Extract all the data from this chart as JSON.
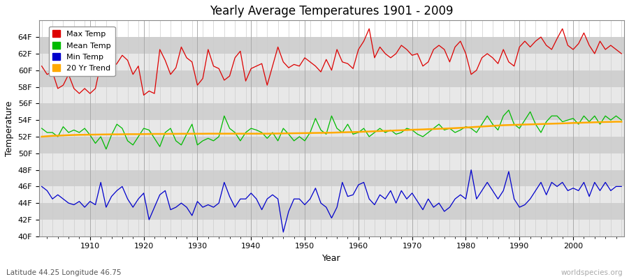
{
  "title": "Yearly Average Temperatures 1901 - 2009",
  "xlabel": "Year",
  "ylabel": "Temperature",
  "start_year": 1901,
  "end_year": 2009,
  "ylim": [
    40,
    66
  ],
  "yticks": [
    40,
    42,
    44,
    46,
    48,
    50,
    52,
    54,
    56,
    58,
    60,
    62,
    64
  ],
  "background_color": "#ffffff",
  "plot_bg_color": "#ffffff",
  "band_color_light": "#e8e8e8",
  "band_color_dark": "#d0d0d0",
  "grid_color": "#cccccc",
  "legend_labels": [
    "Max Temp",
    "Mean Temp",
    "Min Temp",
    "20 Yr Trend"
  ],
  "line_colors": [
    "#dd0000",
    "#00bb00",
    "#0000cc",
    "#ffaa00"
  ],
  "subtitle_left": "Latitude 44.25 Longitude 46.75",
  "subtitle_right": "worldspecies.org",
  "max_temps": [
    60.5,
    59.5,
    59.8,
    57.8,
    58.2,
    59.5,
    57.8,
    57.2,
    57.8,
    57.2,
    57.8,
    60.8,
    62.5,
    60.2,
    60.8,
    61.8,
    61.2,
    59.5,
    60.5,
    57.0,
    57.5,
    57.2,
    62.5,
    61.2,
    59.5,
    60.3,
    62.8,
    61.5,
    61.0,
    58.2,
    59.0,
    62.5,
    60.5,
    60.2,
    58.8,
    59.3,
    61.5,
    62.3,
    58.7,
    60.2,
    60.5,
    60.8,
    58.2,
    60.5,
    62.8,
    61.0,
    60.3,
    60.7,
    60.5,
    61.5,
    61.0,
    60.5,
    59.8,
    61.3,
    60.0,
    62.5,
    61.0,
    60.8,
    60.2,
    62.5,
    63.5,
    65.0,
    61.5,
    62.8,
    62.0,
    61.5,
    62.0,
    63.0,
    62.5,
    61.8,
    62.0,
    60.5,
    61.0,
    62.5,
    63.0,
    62.5,
    61.0,
    62.8,
    63.5,
    62.0,
    59.5,
    60.0,
    61.5,
    62.0,
    61.5,
    60.8,
    62.5,
    61.0,
    60.5,
    62.8,
    63.5,
    62.8,
    63.5,
    64.0,
    63.0,
    62.5,
    63.8,
    65.0,
    63.0,
    62.5,
    63.2,
    64.5,
    63.0,
    62.0,
    63.5,
    62.5,
    63.0,
    62.5,
    62.0
  ],
  "mean_temps": [
    53.0,
    52.5,
    52.5,
    52.0,
    53.2,
    52.5,
    52.8,
    52.5,
    53.0,
    52.2,
    51.2,
    52.0,
    50.5,
    52.2,
    53.5,
    53.0,
    51.5,
    51.0,
    52.0,
    53.0,
    52.8,
    51.8,
    50.8,
    52.5,
    53.0,
    51.5,
    51.0,
    52.3,
    53.5,
    51.0,
    51.5,
    51.8,
    51.5,
    52.0,
    54.5,
    53.0,
    52.5,
    51.5,
    52.5,
    53.0,
    52.8,
    52.5,
    51.8,
    52.5,
    51.5,
    53.0,
    52.3,
    51.5,
    52.0,
    51.5,
    52.5,
    54.2,
    52.8,
    52.3,
    54.5,
    53.0,
    52.5,
    53.5,
    52.3,
    52.5,
    53.0,
    52.0,
    52.5,
    53.0,
    52.5,
    52.8,
    52.3,
    52.5,
    53.0,
    52.8,
    52.3,
    52.0,
    52.5,
    53.0,
    53.5,
    52.8,
    53.0,
    52.5,
    52.8,
    53.2,
    53.0,
    52.5,
    53.5,
    54.5,
    53.5,
    52.8,
    54.5,
    55.2,
    53.5,
    53.0,
    54.0,
    55.0,
    53.5,
    52.5,
    53.8,
    54.5,
    54.5,
    53.8,
    54.0,
    54.2,
    53.5,
    54.5,
    53.8,
    54.5,
    53.5,
    54.5,
    54.0,
    54.5,
    54.0
  ],
  "min_temps": [
    46.0,
    45.5,
    44.5,
    45.0,
    44.5,
    44.0,
    43.8,
    44.2,
    43.5,
    44.2,
    43.8,
    46.5,
    43.5,
    44.8,
    45.5,
    46.0,
    44.5,
    43.5,
    44.5,
    45.2,
    42.0,
    43.5,
    45.0,
    45.5,
    43.2,
    43.5,
    44.0,
    43.5,
    42.5,
    44.2,
    43.5,
    43.8,
    43.5,
    44.0,
    46.5,
    44.8,
    43.5,
    44.5,
    44.5,
    45.2,
    44.5,
    43.2,
    44.5,
    45.0,
    44.5,
    40.5,
    43.0,
    44.5,
    44.5,
    43.8,
    44.5,
    45.8,
    44.0,
    43.5,
    42.2,
    43.5,
    46.5,
    44.8,
    45.0,
    46.2,
    46.5,
    44.5,
    43.8,
    45.0,
    44.5,
    45.5,
    44.0,
    45.5,
    44.5,
    45.2,
    44.2,
    43.2,
    44.5,
    43.5,
    44.0,
    43.0,
    43.5,
    44.5,
    45.0,
    44.5,
    48.0,
    44.5,
    45.5,
    46.5,
    45.5,
    44.5,
    45.5,
    47.8,
    44.5,
    43.5,
    43.8,
    44.5,
    45.5,
    46.5,
    45.0,
    46.5,
    46.0,
    46.5,
    45.5,
    45.8,
    45.5,
    46.5,
    44.8,
    46.5,
    45.5,
    46.5,
    45.5,
    46.0,
    46.0
  ],
  "trend_vals": [
    52.0,
    52.05,
    52.1,
    52.12,
    52.15,
    52.18,
    52.2,
    52.22,
    52.23,
    52.24,
    52.25,
    52.26,
    52.27,
    52.28,
    52.28,
    52.29,
    52.3,
    52.3,
    52.3,
    52.31,
    52.32,
    52.33,
    52.33,
    52.33,
    52.34,
    52.34,
    52.35,
    52.35,
    52.35,
    52.35,
    52.35,
    52.36,
    52.36,
    52.36,
    52.36,
    52.36,
    52.36,
    52.36,
    52.36,
    52.36,
    52.36,
    52.36,
    52.36,
    52.37,
    52.38,
    52.39,
    52.4,
    52.41,
    52.42,
    52.43,
    52.44,
    52.45,
    52.46,
    52.47,
    52.48,
    52.5,
    52.52,
    52.54,
    52.55,
    52.57,
    52.6,
    52.62,
    52.65,
    52.67,
    52.7,
    52.72,
    52.75,
    52.77,
    52.8,
    52.83,
    52.85,
    52.87,
    52.9,
    52.92,
    52.95,
    52.97,
    53.0,
    53.03,
    53.06,
    53.1,
    53.14,
    53.18,
    53.22,
    53.26,
    53.3,
    53.34,
    53.38,
    53.4,
    53.42,
    53.44,
    53.46,
    53.48,
    53.5,
    53.52,
    53.54,
    53.56,
    53.58,
    53.6,
    53.62,
    53.65,
    53.67,
    53.69,
    53.71,
    53.73,
    53.75,
    53.77,
    53.78,
    53.8,
    53.8
  ]
}
